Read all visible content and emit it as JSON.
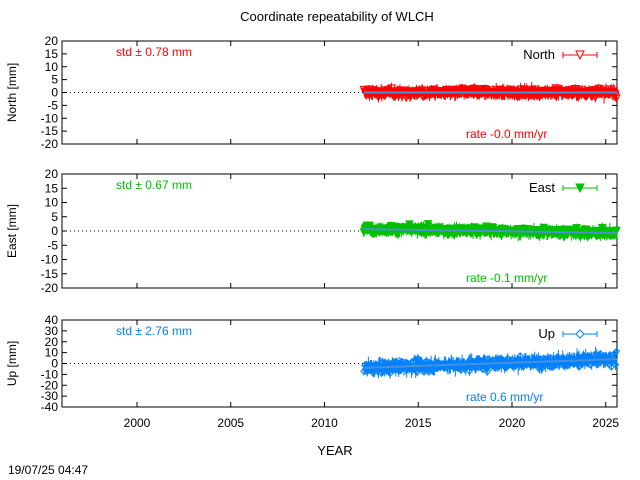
{
  "title": "Coordinate repeatability of WLCH",
  "xlabel": "YEAR",
  "timestamp": "19/07/25 04:47",
  "colors": {
    "north": "#ff0000",
    "east": "#00c000",
    "up": "#0080ff",
    "trend": "#4a90d9",
    "axis": "#000000",
    "grid": "#000000"
  },
  "chart_data": [
    {
      "type": "scatter",
      "name": "North",
      "ylabel": "North [mm]",
      "legend": "North",
      "legend_position": "top-right",
      "marker": "triangle-down-open",
      "std_text": "std ± 0.78 mm",
      "rate_text": "rate -0.0 mm/yr",
      "std_mm": 0.78,
      "rate_mm_per_yr": -0.0,
      "xlim": [
        1996,
        2025.6
      ],
      "ylim": [
        -20,
        20
      ],
      "x_ticks": [
        2000,
        2005,
        2010,
        2015,
        2020,
        2025
      ],
      "y_ticks": [
        20,
        15,
        10,
        5,
        0,
        -5,
        -10,
        -15,
        -20
      ],
      "data_start": 2012.1,
      "data_end": 2025.6,
      "zero_line": true
    },
    {
      "type": "scatter",
      "name": "East",
      "ylabel": "East [mm]",
      "legend": "East",
      "legend_position": "top-right",
      "marker": "triangle-down-filled",
      "std_text": "std ± 0.67 mm",
      "rate_text": "rate -0.1 mm/yr",
      "std_mm": 0.67,
      "rate_mm_per_yr": -0.1,
      "xlim": [
        1996,
        2025.6
      ],
      "ylim": [
        -20,
        20
      ],
      "x_ticks": [
        2000,
        2005,
        2010,
        2015,
        2020,
        2025
      ],
      "y_ticks": [
        20,
        15,
        10,
        5,
        0,
        -5,
        -10,
        -15,
        -20
      ],
      "data_start": 2012.1,
      "data_end": 2025.6,
      "zero_line": true
    },
    {
      "type": "scatter",
      "name": "Up",
      "ylabel": "Up [mm]",
      "legend": "Up",
      "legend_position": "top-right",
      "marker": "diamond-open",
      "std_text": "std ± 2.76 mm",
      "rate_text": "rate  0.6 mm/yr",
      "std_mm": 2.76,
      "rate_mm_per_yr": 0.6,
      "xlim": [
        1996,
        2025.6
      ],
      "ylim": [
        -40,
        40
      ],
      "x_ticks": [
        2000,
        2005,
        2010,
        2015,
        2020,
        2025
      ],
      "y_ticks": [
        40,
        30,
        20,
        10,
        0,
        -10,
        -20,
        -30,
        -40
      ],
      "data_start": 2012.1,
      "data_end": 2025.6,
      "zero_line": true
    }
  ]
}
